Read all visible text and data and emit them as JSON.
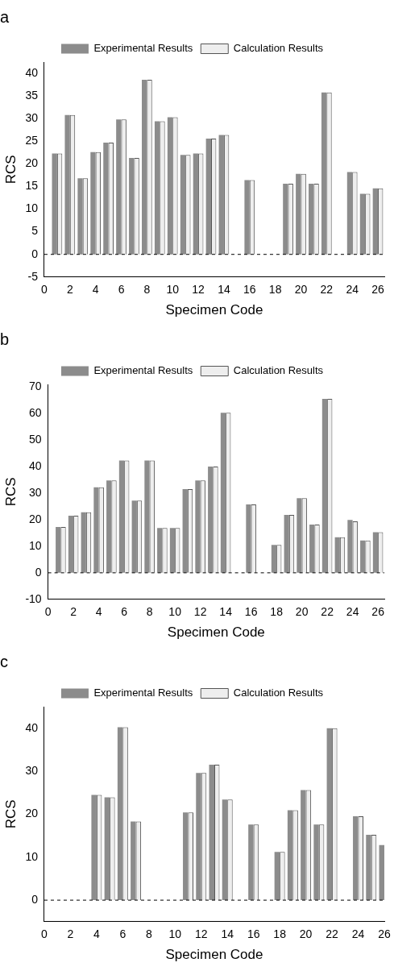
{
  "chart_data": [
    {
      "type": "bar",
      "title": "a",
      "xlabel": "Specimen Code",
      "ylabel": "RCS",
      "x": [
        1,
        2,
        3,
        4,
        5,
        6,
        7,
        8,
        9,
        10,
        11,
        12,
        13,
        14,
        15,
        16,
        17,
        18,
        19,
        20,
        21,
        22,
        23,
        24,
        25,
        26
      ],
      "series": [
        {
          "name": "Experimental Results",
          "color": "#8c8c8c",
          "values": [
            22.3,
            30.8,
            16.8,
            22.6,
            24.7,
            29.8,
            21.3,
            38.6,
            29.4,
            30.3,
            22.0,
            22.3,
            25.6,
            26.4,
            0,
            16.4,
            0,
            0,
            15.6,
            17.8,
            15.6,
            35.8,
            0,
            18.2,
            13.4,
            14.6
          ]
        },
        {
          "name": "Calculation Results",
          "color": "#eeeeee",
          "values": [
            22.3,
            30.8,
            16.8,
            22.6,
            24.7,
            29.8,
            21.3,
            38.6,
            29.4,
            30.3,
            22.0,
            22.3,
            25.6,
            26.4,
            0,
            16.4,
            0,
            0,
            15.6,
            17.8,
            15.6,
            35.8,
            0,
            18.2,
            13.4,
            14.6
          ]
        }
      ],
      "xlim": [
        0,
        26.5
      ],
      "xticks": [
        0,
        2,
        4,
        6,
        8,
        10,
        12,
        14,
        16,
        18,
        20,
        22,
        24,
        26
      ],
      "ylim": [
        -5,
        42.5
      ],
      "yticks": [
        -5,
        0,
        5,
        10,
        15,
        20,
        25,
        30,
        35,
        40
      ],
      "ref_lines": [
        {
          "axis": "y",
          "value": 0,
          "line_style": "dashed"
        }
      ],
      "legend": "top",
      "grid": false
    },
    {
      "type": "bar",
      "title": "b",
      "xlabel": "Specimen Code",
      "ylabel": "RCS",
      "x": [
        1,
        2,
        3,
        4,
        5,
        6,
        7,
        8,
        9,
        10,
        11,
        12,
        13,
        14,
        15,
        16,
        17,
        18,
        19,
        20,
        21,
        22,
        23,
        24,
        25,
        26
      ],
      "series": [
        {
          "name": "Experimental Results",
          "color": "#8c8c8c",
          "values": [
            17.3,
            21.5,
            22.8,
            32.2,
            34.8,
            42.3,
            27.2,
            42.3,
            16.9,
            16.9,
            31.5,
            34.8,
            40.0,
            60.3,
            0,
            25.8,
            0,
            10.5,
            21.8,
            28.1,
            18.2,
            65.5,
            13.4,
            19.9,
            12.2,
            15.3
          ]
        },
        {
          "name": "Calculation Results",
          "color": "#eeeeee",
          "values": [
            17.3,
            21.5,
            22.8,
            32.2,
            34.8,
            42.3,
            27.2,
            42.3,
            16.9,
            16.9,
            31.5,
            34.8,
            40.0,
            60.3,
            0,
            25.8,
            0,
            10.5,
            21.8,
            28.1,
            18.2,
            65.5,
            13.4,
            19.4,
            12.2,
            15.3
          ]
        }
      ],
      "xlim": [
        0,
        26.5
      ],
      "xticks": [
        0,
        2,
        4,
        6,
        8,
        10,
        12,
        14,
        16,
        18,
        20,
        22,
        24,
        26
      ],
      "ylim": [
        -10,
        71
      ],
      "yticks": [
        -10,
        0,
        10,
        20,
        30,
        40,
        50,
        60,
        70
      ],
      "ref_lines": [
        {
          "axis": "y",
          "value": 0,
          "line_style": "dashed"
        }
      ],
      "legend": "top",
      "grid": false
    },
    {
      "type": "bar",
      "title": "c",
      "xlabel": "Specimen Code",
      "ylabel": "RCS",
      "x": [
        1,
        2,
        3,
        4,
        5,
        6,
        7,
        8,
        9,
        10,
        11,
        12,
        13,
        14,
        15,
        16,
        17,
        18,
        19,
        20,
        21,
        22,
        23,
        24,
        25,
        26
      ],
      "series": [
        {
          "name": "Experimental Results",
          "color": "#8c8c8c",
          "values": [
            0,
            0,
            0,
            24.5,
            23.9,
            40.2,
            18.3,
            0,
            0,
            0,
            20.4,
            29.6,
            31.5,
            23.4,
            0,
            17.6,
            0,
            11.2,
            20.9,
            25.6,
            17.6,
            40.0,
            0,
            19.5,
            15.2,
            12.8
          ]
        },
        {
          "name": "Calculation Results",
          "color": "#eeeeee",
          "values": [
            0,
            0,
            0,
            24.5,
            23.9,
            40.2,
            18.3,
            0,
            0,
            0,
            20.4,
            29.6,
            31.5,
            23.4,
            0,
            17.6,
            0,
            11.2,
            20.9,
            25.6,
            17.6,
            40.0,
            0,
            19.5,
            15.2,
            null
          ]
        }
      ],
      "xlim": [
        0,
        26
      ],
      "xticks": [
        0,
        2,
        4,
        6,
        8,
        10,
        12,
        14,
        16,
        18,
        20,
        22,
        24,
        26
      ],
      "ylim": [
        -5,
        45
      ],
      "yticks": [
        0,
        10,
        20,
        30,
        40
      ],
      "ref_lines": [
        {
          "axis": "y",
          "value": 0,
          "line_style": "dashed"
        }
      ],
      "legend": "top",
      "grid": false
    }
  ]
}
